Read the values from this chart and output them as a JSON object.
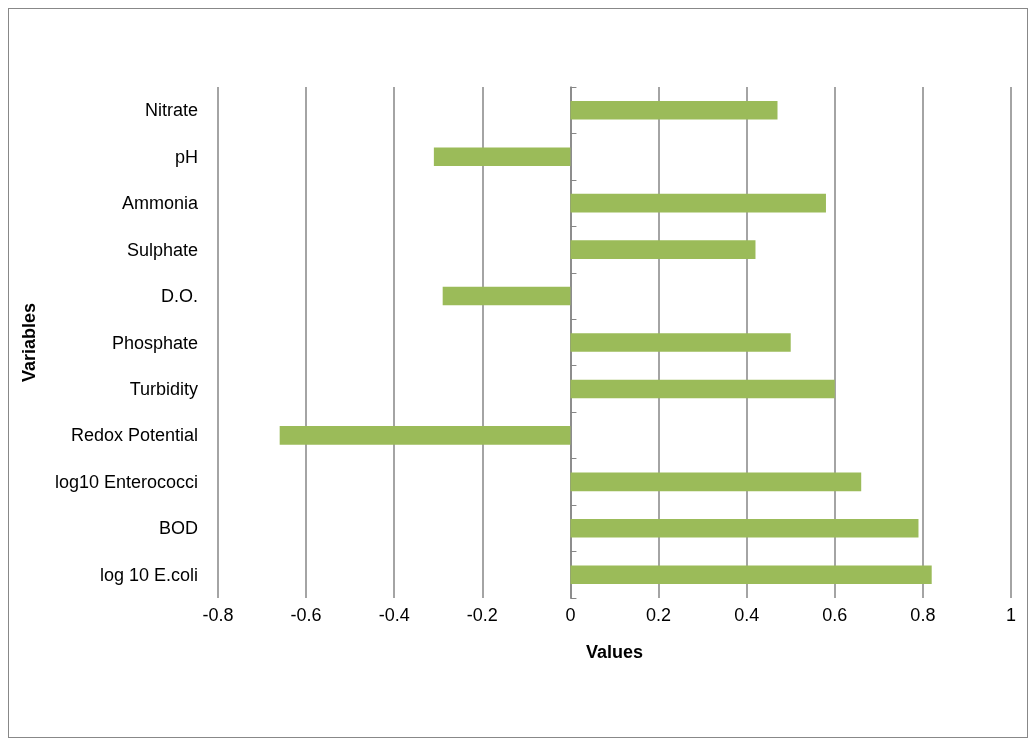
{
  "chart_data": {
    "type": "bar",
    "orientation": "horizontal",
    "xlabel": "Values",
    "ylabel": "Variables",
    "categories": [
      "Nitrate",
      "pH",
      "Ammonia",
      "Sulphate",
      "D.O.",
      "Phosphate",
      "Turbidity",
      "Redox Potential",
      "log10 Enterococci",
      "BOD",
      "log 10 E.coli"
    ],
    "values": [
      0.47,
      -0.31,
      0.58,
      0.42,
      -0.29,
      0.5,
      0.6,
      -0.66,
      0.66,
      0.79,
      0.82
    ],
    "color": "#9bbb59",
    "xlim": [
      -0.8,
      1
    ],
    "xticks": [
      -0.8,
      -0.6,
      -0.4,
      -0.2,
      0,
      0.2,
      0.4,
      0.6,
      0.8,
      1
    ],
    "grid": "x"
  }
}
